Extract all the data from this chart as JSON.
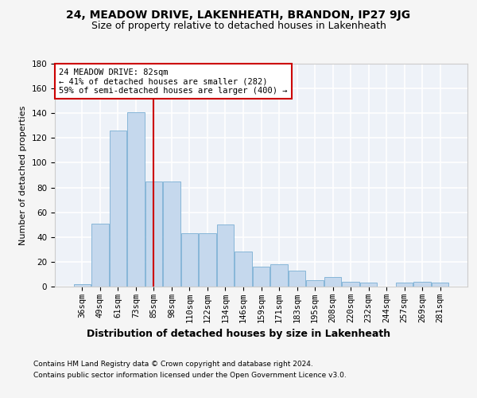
{
  "title1": "24, MEADOW DRIVE, LAKENHEATH, BRANDON, IP27 9JG",
  "title2": "Size of property relative to detached houses in Lakenheath",
  "xlabel": "Distribution of detached houses by size in Lakenheath",
  "ylabel": "Number of detached properties",
  "categories": [
    "36sqm",
    "49sqm",
    "61sqm",
    "73sqm",
    "85sqm",
    "98sqm",
    "110sqm",
    "122sqm",
    "134sqm",
    "146sqm",
    "159sqm",
    "171sqm",
    "183sqm",
    "195sqm",
    "208sqm",
    "220sqm",
    "232sqm",
    "244sqm",
    "257sqm",
    "269sqm",
    "281sqm"
  ],
  "values": [
    2,
    51,
    126,
    141,
    85,
    85,
    43,
    43,
    50,
    28,
    16,
    18,
    13,
    5,
    8,
    4,
    3,
    0,
    3,
    4,
    3
  ],
  "bar_color": "#c5d8ed",
  "bar_edge_color": "#7aafd4",
  "marker_index": 4,
  "marker_color": "#cc0000",
  "annotation_line1": "24 MEADOW DRIVE: 82sqm",
  "annotation_line2": "← 41% of detached houses are smaller (282)",
  "annotation_line3": "59% of semi-detached houses are larger (400) →",
  "annotation_box_color": "#ffffff",
  "annotation_box_edge_color": "#cc0000",
  "footer1": "Contains HM Land Registry data © Crown copyright and database right 2024.",
  "footer2": "Contains public sector information licensed under the Open Government Licence v3.0.",
  "ylim": [
    0,
    180
  ],
  "yticks": [
    0,
    20,
    40,
    60,
    80,
    100,
    120,
    140,
    160,
    180
  ],
  "bg_color": "#eef2f8",
  "grid_color": "#ffffff",
  "fig_bg_color": "#f5f5f5",
  "title1_fontsize": 10,
  "title2_fontsize": 9,
  "tick_fontsize": 7.5,
  "ylabel_fontsize": 8,
  "xlabel_fontsize": 9,
  "annotation_fontsize": 7.5,
  "footer_fontsize": 6.5
}
